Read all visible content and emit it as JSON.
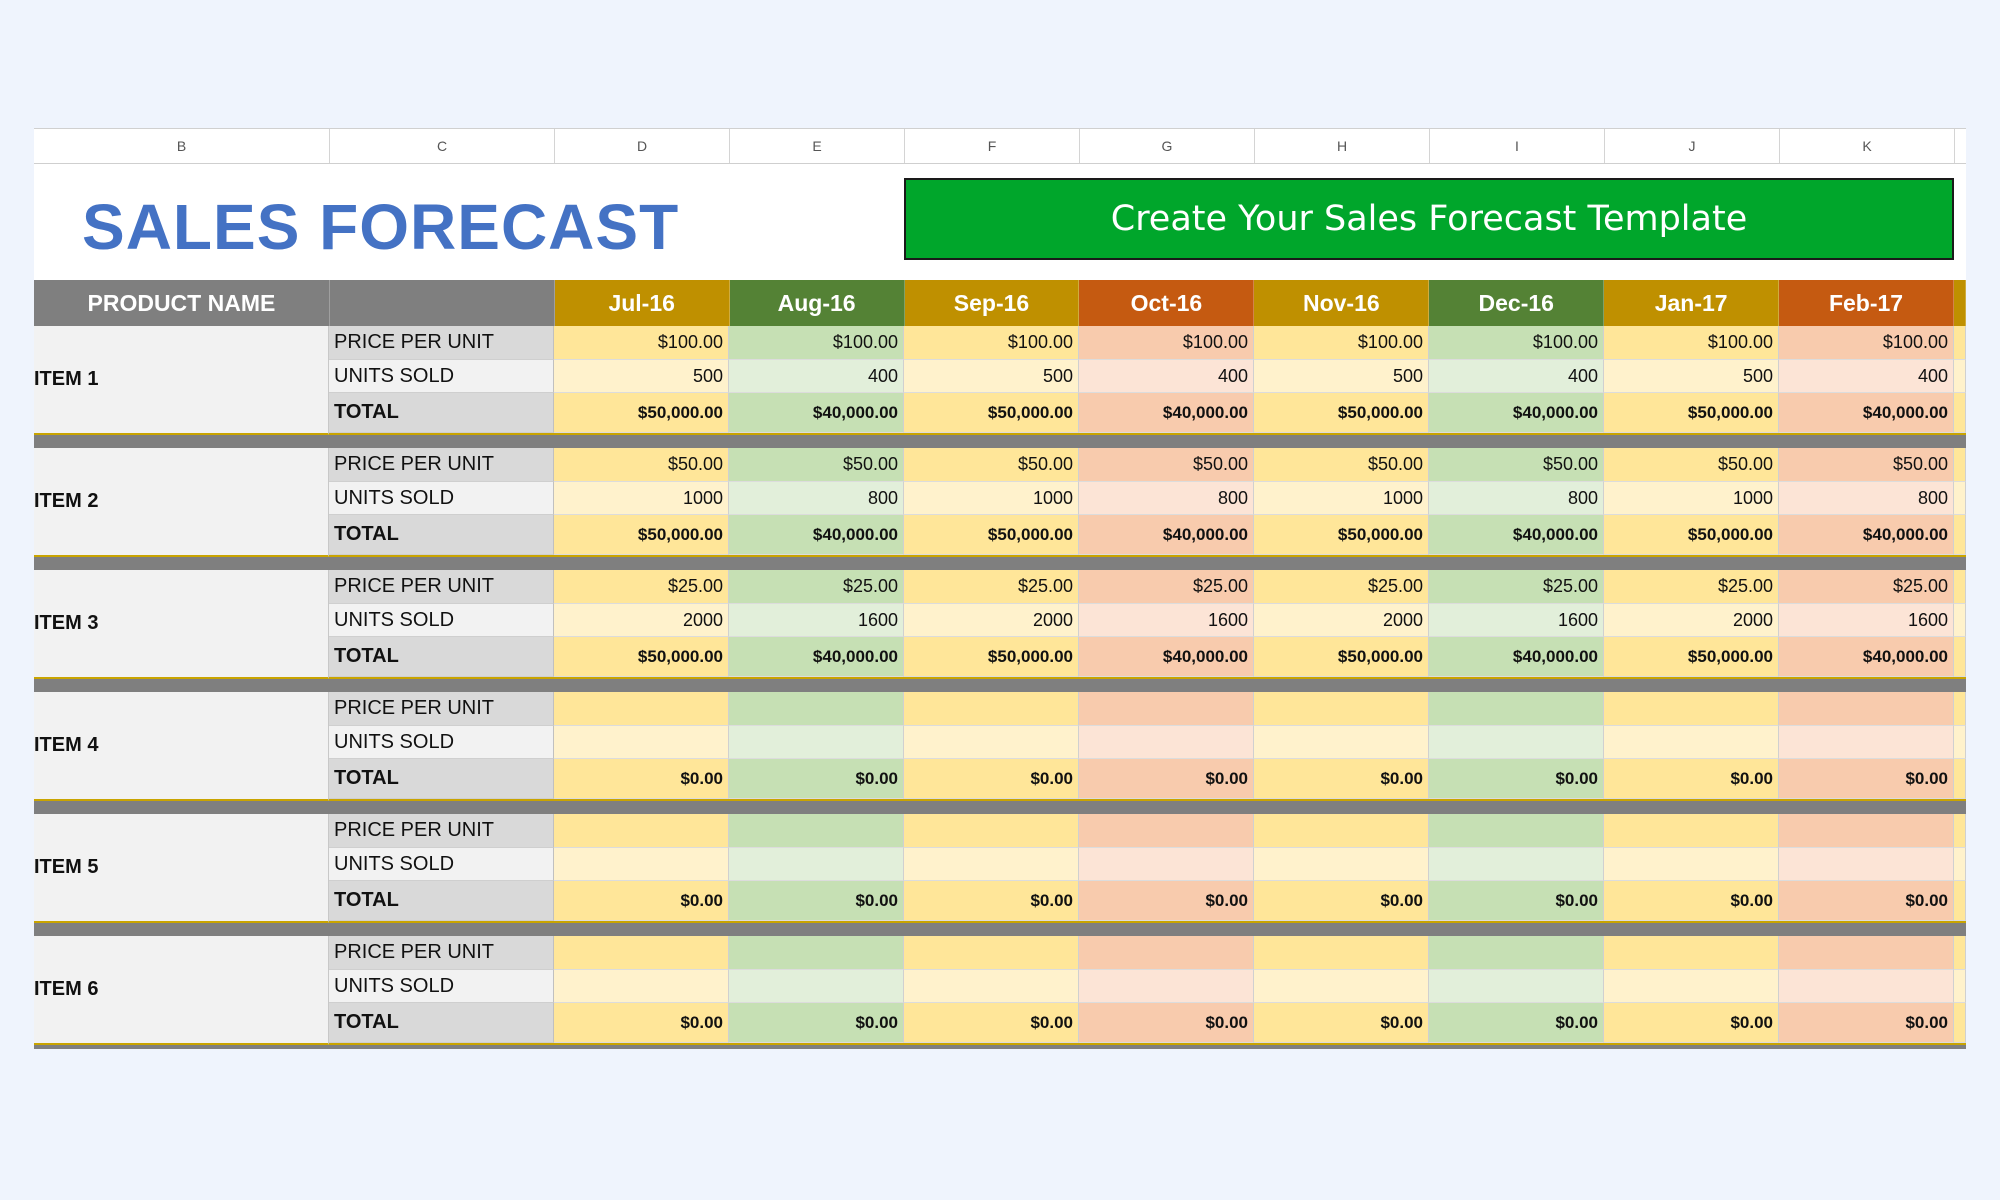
{
  "columns": [
    "B",
    "C",
    "D",
    "E",
    "F",
    "G",
    "H",
    "I",
    "J",
    "K"
  ],
  "title": "SALES FORECAST",
  "cta_label": "Create Your Sales Forecast Template",
  "header": {
    "product_label": "PRODUCT NAME",
    "months": [
      "Jul-16",
      "Aug-16",
      "Sep-16",
      "Oct-16",
      "Nov-16",
      "Dec-16",
      "Jan-17",
      "Feb-17"
    ]
  },
  "row_labels": {
    "ppu": "PRICE PER UNIT",
    "units": "UNITS SOLD",
    "total": "TOTAL"
  },
  "colors": {
    "yellow": {
      "head": "#bf9000",
      "ppu": "#ffe699",
      "units": "#fff2cc",
      "total": "#ffe699"
    },
    "green": {
      "head": "#548235",
      "ppu": "#c6e0b4",
      "units": "#e2efda",
      "total": "#c6e0b4"
    },
    "orange": {
      "head": "#c55a11",
      "ppu": "#f8cbad",
      "units": "#fce4d6",
      "total": "#f8cbad"
    }
  },
  "month_colors": [
    "yellow",
    "green",
    "yellow",
    "orange",
    "yellow",
    "green",
    "yellow",
    "orange"
  ],
  "items": [
    {
      "name": "ITEM 1",
      "ppu": [
        "$100.00",
        "$100.00",
        "$100.00",
        "$100.00",
        "$100.00",
        "$100.00",
        "$100.00",
        "$100.00"
      ],
      "units": [
        "500",
        "400",
        "500",
        "400",
        "500",
        "400",
        "500",
        "400"
      ],
      "total": [
        "$50,000.00",
        "$40,000.00",
        "$50,000.00",
        "$40,000.00",
        "$50,000.00",
        "$40,000.00",
        "$50,000.00",
        "$40,000.00"
      ]
    },
    {
      "name": "ITEM 2",
      "ppu": [
        "$50.00",
        "$50.00",
        "$50.00",
        "$50.00",
        "$50.00",
        "$50.00",
        "$50.00",
        "$50.00"
      ],
      "units": [
        "1000",
        "800",
        "1000",
        "800",
        "1000",
        "800",
        "1000",
        "800"
      ],
      "total": [
        "$50,000.00",
        "$40,000.00",
        "$50,000.00",
        "$40,000.00",
        "$50,000.00",
        "$40,000.00",
        "$50,000.00",
        "$40,000.00"
      ]
    },
    {
      "name": "ITEM 3",
      "ppu": [
        "$25.00",
        "$25.00",
        "$25.00",
        "$25.00",
        "$25.00",
        "$25.00",
        "$25.00",
        "$25.00"
      ],
      "units": [
        "2000",
        "1600",
        "2000",
        "1600",
        "2000",
        "1600",
        "2000",
        "1600"
      ],
      "total": [
        "$50,000.00",
        "$40,000.00",
        "$50,000.00",
        "$40,000.00",
        "$50,000.00",
        "$40,000.00",
        "$50,000.00",
        "$40,000.00"
      ]
    },
    {
      "name": "ITEM 4",
      "ppu": [
        "",
        "",
        "",
        "",
        "",
        "",
        "",
        ""
      ],
      "units": [
        "",
        "",
        "",
        "",
        "",
        "",
        "",
        ""
      ],
      "total": [
        "$0.00",
        "$0.00",
        "$0.00",
        "$0.00",
        "$0.00",
        "$0.00",
        "$0.00",
        "$0.00"
      ]
    },
    {
      "name": "ITEM 5",
      "ppu": [
        "",
        "",
        "",
        "",
        "",
        "",
        "",
        ""
      ],
      "units": [
        "",
        "",
        "",
        "",
        "",
        "",
        "",
        ""
      ],
      "total": [
        "$0.00",
        "$0.00",
        "$0.00",
        "$0.00",
        "$0.00",
        "$0.00",
        "$0.00",
        "$0.00"
      ]
    },
    {
      "name": "ITEM 6",
      "ppu": [
        "",
        "",
        "",
        "",
        "",
        "",
        "",
        ""
      ],
      "units": [
        "",
        "",
        "",
        "",
        "",
        "",
        "",
        ""
      ],
      "total": [
        "$0.00",
        "$0.00",
        "$0.00",
        "$0.00",
        "$0.00",
        "$0.00",
        "$0.00",
        "$0.00"
      ]
    }
  ]
}
